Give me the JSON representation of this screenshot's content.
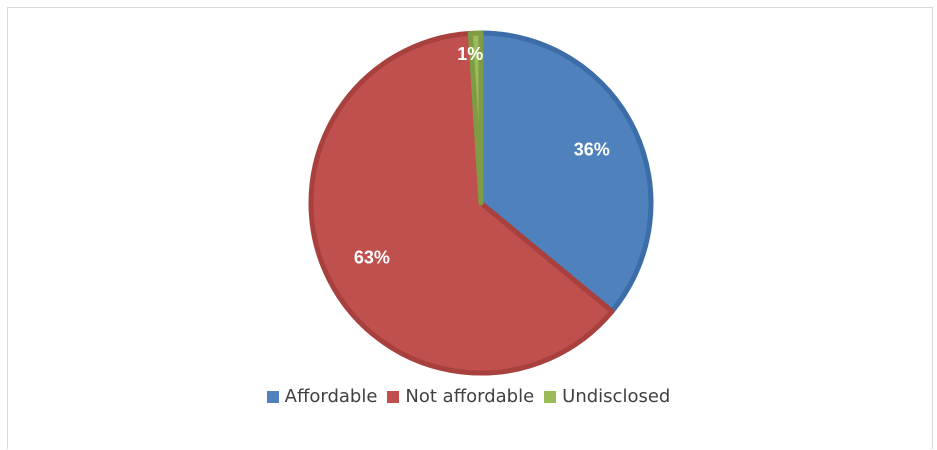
{
  "chart_data": {
    "type": "pie",
    "title": "",
    "slices": [
      {
        "name": "Affordable",
        "value": 36,
        "label": "36%",
        "color": "#4f81bd",
        "edge": "#3d6da8"
      },
      {
        "name": "Not affordable",
        "value": 63,
        "label": "63%",
        "color": "#c0504d",
        "edge": "#a8413e"
      },
      {
        "name": "Undisclosed",
        "value": 1,
        "label": "1%",
        "color": "#9bbb59",
        "edge": "#7f9c45"
      }
    ],
    "start_angle_deg": 0,
    "direction": "clockwise",
    "legend_position": "bottom",
    "data_labels": true
  }
}
